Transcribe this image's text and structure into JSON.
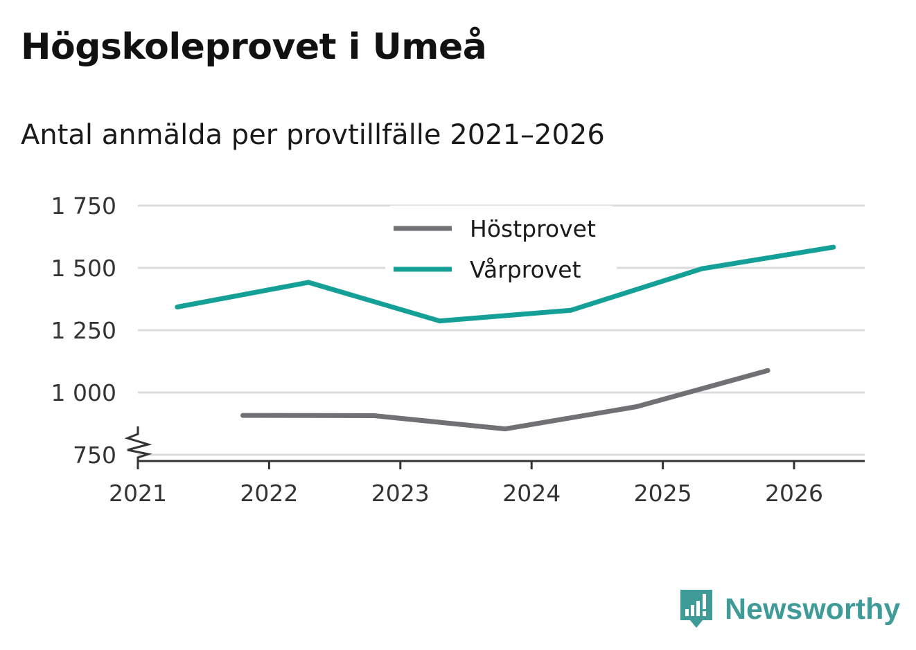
{
  "title": "Högskoleprovet i Umeå",
  "subtitle": "Antal anmälda per provtillfälle 2021–2026",
  "brand": {
    "name": "Newsworthy",
    "icon": "newsworthy-logo-icon",
    "color": "#3f9b98"
  },
  "chart_data": {
    "type": "line",
    "title": "Högskoleprovet i Umeå",
    "subtitle": "Antal anmälda per provtillfälle 2021–2026",
    "xlabel": "",
    "ylabel": "",
    "xlim": [
      2021,
      2026.6
    ],
    "ylim": [
      730,
      1750
    ],
    "axis_break": true,
    "x_ticks": [
      2021,
      2022,
      2023,
      2024,
      2025,
      2026
    ],
    "x_tick_labels": [
      "2021",
      "2022",
      "2023",
      "2024",
      "2025",
      "2026"
    ],
    "y_ticks": [
      750,
      1000,
      1250,
      1500,
      1750
    ],
    "y_tick_labels": [
      "750",
      "1 000",
      "1 250",
      "1 500",
      "1 750"
    ],
    "grid": true,
    "legend_position": "top-center",
    "series": [
      {
        "name": "Höstprovet",
        "color": "#707075",
        "x": [
          2021.8,
          2022.8,
          2023.8,
          2024.8,
          2025.8
        ],
        "values": [
          908,
          907,
          854,
          943,
          1088
        ]
      },
      {
        "name": "Vårprovet",
        "color": "#15a097",
        "x": [
          2021.3,
          2022.3,
          2023.3,
          2024.3,
          2025.3,
          2026.3
        ],
        "values": [
          1343,
          1442,
          1287,
          1330,
          1497,
          1583
        ]
      }
    ]
  }
}
